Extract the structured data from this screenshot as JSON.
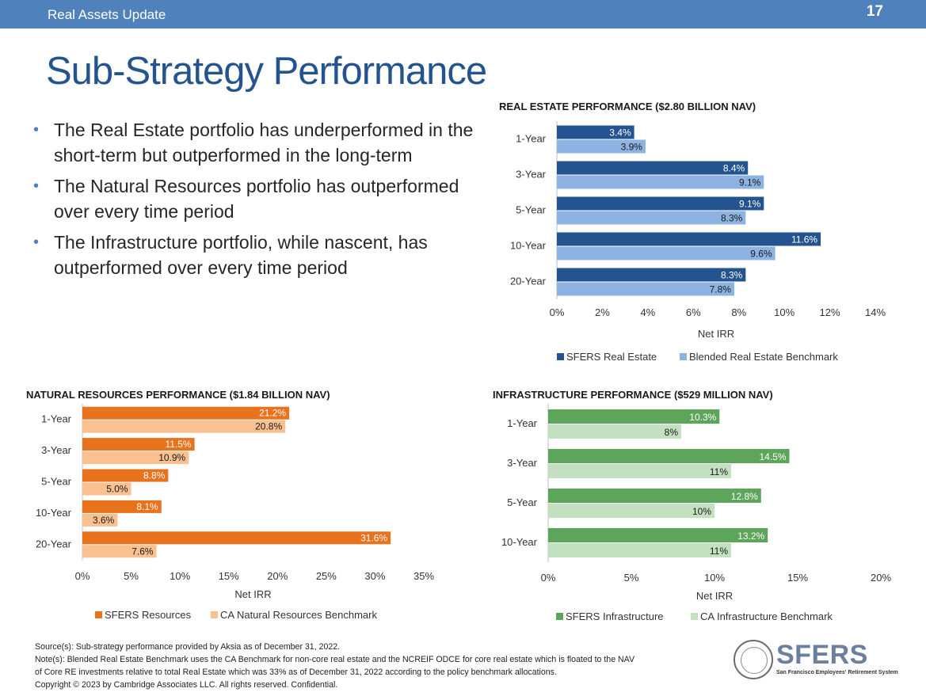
{
  "header": {
    "section": "Real Assets Update",
    "page_number": "17"
  },
  "title": "Sub-Strategy Performance",
  "bullets": [
    "The Real Estate portfolio has underperformed in the short-term but outperformed in the long-term",
    "The Natural Resources portfolio has outperformed over every time period",
    "The Infrastructure portfolio, while nascent, has outperformed over every time period"
  ],
  "chart_data": [
    {
      "id": "real-estate",
      "type": "bar",
      "orientation": "horizontal",
      "title": "REAL ESTATE PERFORMANCE ($2.80 BILLION NAV)",
      "categories": [
        "1-Year",
        "3-Year",
        "5-Year",
        "10-Year",
        "20-Year"
      ],
      "series": [
        {
          "name": "SFERS Real Estate",
          "values": [
            3.4,
            8.4,
            9.1,
            11.6,
            8.3
          ],
          "labels": [
            "3.4%",
            "8.4%",
            "9.1%",
            "11.6%",
            "8.3%"
          ],
          "color": "#23548f",
          "label_color": "#ffffff"
        },
        {
          "name": "Blended Real Estate Benchmark",
          "values": [
            3.9,
            9.1,
            8.3,
            9.6,
            7.8
          ],
          "labels": [
            "3.9%",
            "9.1%",
            "8.3%",
            "9.6%",
            "7.8%"
          ],
          "color": "#8db3e2",
          "label_color": "#1a1a1a"
        }
      ],
      "xlim": [
        0,
        14
      ],
      "xticks": [
        "0%",
        "2%",
        "4%",
        "6%",
        "8%",
        "10%",
        "12%",
        "14%"
      ],
      "xlabel": "Net IRR",
      "legend": "bottom"
    },
    {
      "id": "natural-resources",
      "type": "bar",
      "orientation": "horizontal",
      "title": "NATURAL RESOURCES PERFORMANCE ($1.84 BILLION NAV)",
      "categories": [
        "1-Year",
        "3-Year",
        "5-Year",
        "10-Year",
        "20-Year"
      ],
      "series": [
        {
          "name": "SFERS Resources",
          "values": [
            21.2,
            11.5,
            8.8,
            8.1,
            31.6
          ],
          "labels": [
            "21.2%",
            "11.5%",
            "8.8%",
            "8.1%",
            "31.6%"
          ],
          "color": "#e9721d",
          "label_color": "#ffffff"
        },
        {
          "name": "CA Natural Resources Benchmark",
          "values": [
            20.8,
            10.9,
            5.0,
            3.6,
            7.6
          ],
          "labels": [
            "20.8%",
            "10.9%",
            "5.0%",
            "3.6%",
            "7.6%"
          ],
          "color": "#fbc08f",
          "label_color": "#1a1a1a"
        }
      ],
      "xlim": [
        0,
        35
      ],
      "xticks": [
        "0%",
        "5%",
        "10%",
        "15%",
        "20%",
        "25%",
        "30%",
        "35%"
      ],
      "xlabel": "Net IRR",
      "legend": "bottom"
    },
    {
      "id": "infrastructure",
      "type": "bar",
      "orientation": "horizontal",
      "title": "INFRASTRUCTURE PERFORMANCE ($529 MILLION NAV)",
      "categories": [
        "1-Year",
        "3-Year",
        "5-Year",
        "10-Year"
      ],
      "series": [
        {
          "name": "SFERS Infrastructure",
          "values": [
            10.3,
            14.5,
            12.8,
            13.2
          ],
          "labels": [
            "10.3%",
            "14.5%",
            "12.8%",
            "13.2%"
          ],
          "color": "#5da55a",
          "label_color": "#ffffff"
        },
        {
          "name": "CA Infrastructure Benchmark",
          "values": [
            8,
            11,
            10,
            11
          ],
          "labels": [
            "8%",
            "11%",
            "10%",
            "11%"
          ],
          "color": "#c3e1c1",
          "label_color": "#1a1a1a"
        }
      ],
      "xlim": [
        0,
        20
      ],
      "xticks": [
        "0%",
        "5%",
        "10%",
        "15%",
        "20%"
      ],
      "xlabel": "Net IRR",
      "legend": "bottom"
    }
  ],
  "footer": {
    "source": "Source(s): Sub-strategy performance provided by Aksia as of December 31, 2022.",
    "note_line1": "Note(s): Blended Real Estate Benchmark uses the CA Benchmark for non-core real estate and the NCREIF ODCE for core real estate which is floated to the NAV",
    "note_line2": "of Core RE investments relative to total Real Estate which was 33% as of December 31, 2022 according to the policy benchmark allocations.",
    "copyright": "Copyright © 2023 by Cambridge Associates LLC. All rights reserved. Confidential."
  },
  "logo": {
    "brand": "SFERS",
    "subtitle": "San Francisco Employees' Retirement System"
  }
}
